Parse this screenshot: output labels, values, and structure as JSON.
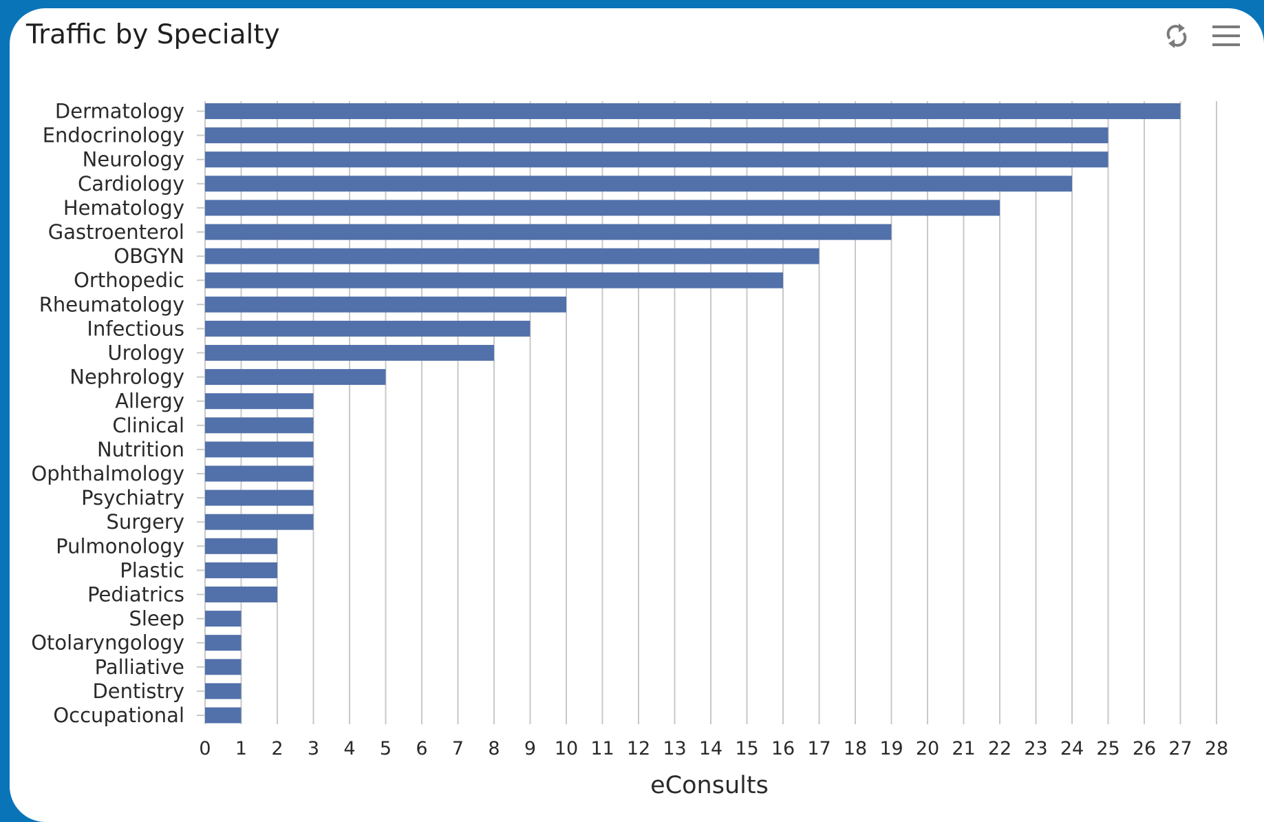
{
  "colors": {
    "frame": "#0a74b9",
    "bar": "#5270aa",
    "grid": "#c8c8c8",
    "icon": "#7b7b7b"
  },
  "toolbar": {
    "refresh_icon": "refresh-icon",
    "menu_icon": "hamburger-menu-icon"
  },
  "chart_data": {
    "type": "bar",
    "orientation": "horizontal",
    "title": "Traffic by Specialty",
    "xlabel": "eConsults",
    "ylabel": "",
    "xlim": [
      0,
      28
    ],
    "xticks": [
      "0",
      "1",
      "2",
      "3",
      "4",
      "5",
      "6",
      "7",
      "8",
      "9",
      "10",
      "11",
      "12",
      "13",
      "14",
      "15",
      "16",
      "17",
      "18",
      "19",
      "20",
      "21",
      "22",
      "23",
      "24",
      "25",
      "26",
      "27",
      "28"
    ],
    "grid": "vertical",
    "legend": "none",
    "categories": [
      "Dermatology",
      "Endocrinology",
      "Neurology",
      "Cardiology",
      "Hematology",
      "Gastroenterol",
      "OBGYN",
      "Orthopedic",
      "Rheumatology",
      "Infectious",
      "Urology",
      "Nephrology",
      "Allergy",
      "Clinical",
      "Nutrition",
      "Ophthalmology",
      "Psychiatry",
      "Surgery",
      "Pulmonology",
      "Plastic",
      "Pediatrics",
      "Sleep",
      "Otolaryngology",
      "Palliative",
      "Dentistry",
      "Occupational"
    ],
    "values": [
      27,
      25,
      25,
      24,
      22,
      19,
      17,
      16,
      10,
      9,
      8,
      5,
      3,
      3,
      3,
      3,
      3,
      3,
      2,
      2,
      2,
      1,
      1,
      1,
      1,
      1
    ]
  }
}
